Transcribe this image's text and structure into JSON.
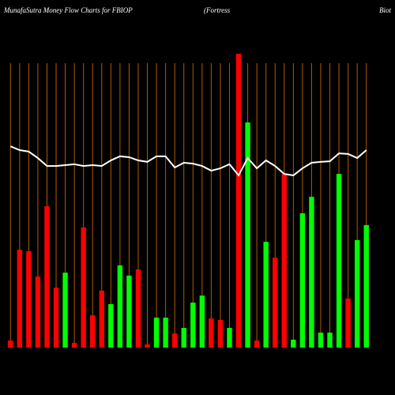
{
  "chart_data": {
    "type": "bar",
    "title_parts": [
      "MunafaSutra  Money Flow  Charts for FBIOP",
      "(Fortress",
      "Biot"
    ],
    "categories": [
      null,
      null,
      null,
      null,
      null,
      null,
      null,
      null,
      null,
      null,
      null,
      null,
      null,
      null,
      null,
      null,
      null,
      null,
      null,
      null,
      null,
      null,
      null,
      null,
      null,
      null,
      null,
      null,
      null,
      null,
      null,
      null,
      null,
      null,
      null,
      null,
      null,
      null,
      null,
      null
    ],
    "values": [
      2.4,
      33.3,
      32.8,
      24.2,
      48.1,
      20.4,
      25.5,
      1.6,
      40.9,
      11.0,
      19.4,
      14.8,
      28.0,
      24.5,
      26.6,
      1.1,
      10.2,
      10.2,
      4.8,
      6.7,
      15.3,
      17.7,
      9.9,
      9.4,
      6.7,
      100,
      76.6,
      2.4,
      36.0,
      30.6,
      59.1,
      2.7,
      45.7,
      51.3,
      5.1,
      5.1,
      59.1,
      16.7,
      36.6,
      41.7
    ],
    "colors": [
      "#ff0000",
      "#ff0000",
      "#ff0000",
      "#ff0000",
      "#ff0000",
      "#ff0000",
      "#00ff00",
      "#ff0000",
      "#ff0000",
      "#ff0000",
      "#ff0000",
      "#00ff00",
      "#00ff00",
      "#00ff00",
      "#ff0000",
      "#ff0000",
      "#00ff00",
      "#00ff00",
      "#ff0000",
      "#00ff00",
      "#00ff00",
      "#00ff00",
      "#ff0000",
      "#ff0000",
      "#00ff00",
      "#ff0000",
      "#00ff00",
      "#ff0000",
      "#00ff00",
      "#ff0000",
      "#ff0000",
      "#00ff00",
      "#00ff00",
      "#00ff00",
      "#00ff00",
      "#00ff00",
      "#00ff00",
      "#ff0000",
      "#00ff00",
      "#00ff00"
    ],
    "line": {
      "color": "#ffffff",
      "values": [
        68.5,
        67.2,
        66.7,
        64.5,
        61.8,
        61.8,
        62.1,
        62.4,
        61.8,
        62.1,
        61.8,
        63.7,
        65.1,
        64.8,
        63.7,
        63.2,
        65.1,
        65.1,
        61.3,
        62.9,
        62.6,
        61.8,
        60.2,
        61.0,
        62.4,
        58.6,
        64.5,
        61.0,
        63.7,
        61.8,
        59.1,
        58.6,
        61.0,
        62.9,
        63.2,
        63.4,
        66.1,
        65.9,
        64.5,
        67.2
      ]
    },
    "ylim": [
      0,
      100
    ],
    "grid": true,
    "grid_color": "#b35a00"
  }
}
